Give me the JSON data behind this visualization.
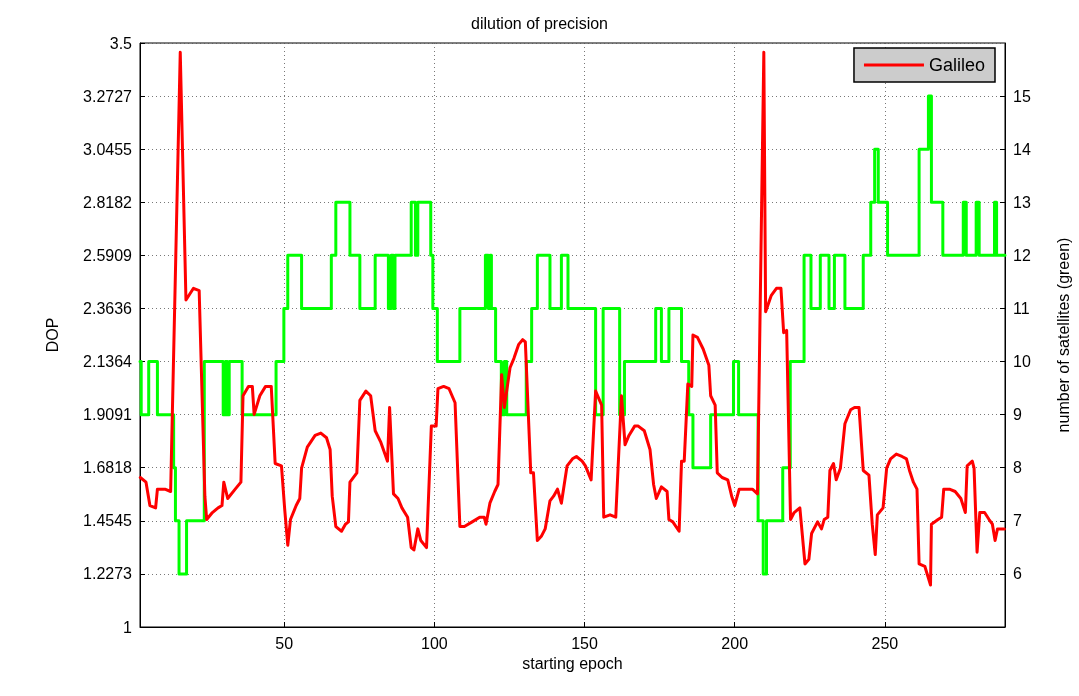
{
  "chart_data": {
    "type": "line",
    "title": "dilution of precision",
    "xlabel": "starting epoch",
    "ylabel": "DOP",
    "y2label": "number of satellites (green)",
    "xlim": [
      2,
      290
    ],
    "xticks": [
      50,
      100,
      150,
      200,
      250
    ],
    "ylim": [
      1,
      3.5
    ],
    "yticks": [
      1,
      1.2273,
      1.4545,
      1.6818,
      1.9091,
      2.1364,
      2.3636,
      2.5909,
      2.8182,
      3.0455,
      3.2727,
      3.5
    ],
    "y2lim": [
      5,
      16
    ],
    "y2ticks": [
      6,
      7,
      8,
      9,
      10,
      11,
      12,
      13,
      14,
      15
    ],
    "grid": true,
    "legend": "top right",
    "marker": "none",
    "line_style": "solid",
    "series": [
      {
        "type": "step",
        "axis": "y2",
        "color": "#00ff00",
        "x": [
          2,
          2.4,
          4.9,
          7.8,
          13.2,
          13.8,
          15,
          17.5,
          23.4,
          29.7,
          30.4,
          31.1,
          31.7,
          36,
          47.3,
          49.9,
          51.2,
          55.8,
          65.7,
          67.2,
          71.9,
          75.2,
          80.3,
          84.7,
          85.6,
          86.4,
          86.9,
          92.3,
          93.7,
          94.5,
          98.8,
          99.5,
          101,
          108.5,
          117,
          118,
          118.5,
          119,
          120.4,
          122.3,
          123.3,
          124.1,
          130.6,
          132.4,
          134.3,
          138.5,
          142.3,
          144.5,
          153.7,
          156.2,
          161.7,
          163.3,
          173.7,
          175.6,
          178.1,
          182.3,
          184.7,
          186.1,
          192,
          199.6,
          201.3,
          207.8,
          209.5,
          210.6,
          216,
          218.5,
          223.1,
          225.4,
          228.5,
          231.4,
          233.2,
          236.7,
          242.8,
          245.3,
          246.6,
          247.8,
          250.9,
          261.4,
          264.5,
          265.5,
          269.3,
          276.1,
          277.1,
          280.4,
          281.4,
          286.5,
          287.2,
          290
        ],
        "values": [
          10,
          9,
          10,
          9,
          8,
          7,
          6,
          7,
          10,
          9,
          10,
          9,
          10,
          9,
          10,
          11,
          12,
          11,
          12,
          13,
          12,
          11,
          12,
          11,
          12,
          11,
          12,
          13,
          12,
          13,
          12,
          11,
          10,
          11,
          12,
          11,
          12,
          11,
          10,
          9,
          10,
          9,
          10,
          11,
          12,
          11,
          12,
          11,
          9,
          11,
          9,
          10,
          11,
          10,
          11,
          10,
          9,
          8,
          9,
          10,
          9,
          7,
          6,
          7,
          8,
          10,
          12,
          11,
          12,
          11,
          12,
          11,
          12,
          13,
          14,
          13,
          12,
          14,
          15,
          13,
          12,
          13,
          12,
          13,
          12,
          13,
          12,
          12
        ]
      },
      {
        "name": "Galileo",
        "type": "line",
        "color": "#ff0000",
        "x": [
          2.1,
          4,
          5.3,
          7.2,
          7.8,
          10.3,
          12.2,
          15.4,
          17.3,
          19.8,
          21.7,
          23.6,
          24.2,
          26.1,
          28,
          29.3,
          29.9,
          31.2,
          33.7,
          35.6,
          36.3,
          38.1,
          39.4,
          40,
          41.9,
          43.8,
          45.7,
          47,
          49.1,
          50.2,
          51.2,
          52.1,
          54,
          55.2,
          55.8,
          57.7,
          60.3,
          62.2,
          64.1,
          65.3,
          66,
          67.2,
          69.1,
          70.4,
          71.4,
          71.9,
          74.2,
          75.2,
          77.2,
          78.8,
          80.3,
          82.2,
          84.4,
          85.1,
          86.4,
          87.9,
          89.2,
          91.1,
          92.3,
          93.2,
          94.5,
          95.5,
          97.4,
          99,
          100.6,
          101.2,
          103.1,
          104.9,
          106.9,
          108.5,
          110,
          112.6,
          115.1,
          116.6,
          117.2,
          118.5,
          120.1,
          121.2,
          122.4,
          123.3,
          125.2,
          126.5,
          128.1,
          129.4,
          130.3,
          132.1,
          133,
          134.3,
          135.7,
          136.9,
          138.5,
          139.7,
          141,
          142.3,
          144.2,
          146,
          147.3,
          149.2,
          150.3,
          152.2,
          153.7,
          155.7,
          156.4,
          158.5,
          160.4,
          162.3,
          163.5,
          164.8,
          166.7,
          167.9,
          169.9,
          171.8,
          173,
          173.9,
          175.6,
          177.5,
          178.1,
          179.4,
          181.5,
          182.3,
          183.2,
          184.4,
          185.7,
          186.1,
          187.6,
          189.5,
          191.4,
          192,
          193.5,
          194.2,
          195.8,
          197.7,
          199,
          200,
          201.5,
          203.4,
          204.6,
          205.9,
          207.6,
          209.7,
          210.3,
          212.2,
          213.9,
          215.4,
          216.3,
          217.3,
          218.6,
          219.8,
          221.7,
          223.4,
          224.7,
          225.6,
          227.6,
          228.9,
          229.8,
          231,
          231.7,
          232.9,
          233.8,
          235.2,
          236.7,
          238.6,
          239.9,
          241.4,
          242.8,
          244.7,
          245.8,
          246.8,
          247.5,
          249.4,
          250.6,
          251.9,
          253.8,
          255.7,
          257.2,
          258.2,
          259.5,
          260.7,
          261.4,
          263.3,
          265.2,
          265.5,
          267.7,
          268.9,
          269.6,
          271.5,
          273.4,
          275.3,
          276.8,
          277.4,
          279.1,
          279.7,
          280.7,
          281.6,
          283.2,
          284.7,
          285.8,
          286.7,
          287.5,
          289.8
        ],
        "values": [
          1.64,
          1.62,
          1.52,
          1.51,
          1.59,
          1.59,
          1.58,
          3.46,
          2.4,
          2.45,
          2.44,
          1.56,
          1.46,
          1.49,
          1.51,
          1.52,
          1.62,
          1.55,
          1.59,
          1.62,
          1.99,
          2.03,
          2.03,
          1.91,
          1.99,
          2.03,
          2.03,
          1.7,
          1.69,
          1.5,
          1.35,
          1.46,
          1.52,
          1.55,
          1.68,
          1.77,
          1.82,
          1.83,
          1.81,
          1.76,
          1.56,
          1.43,
          1.41,
          1.44,
          1.45,
          1.62,
          1.66,
          1.97,
          2.01,
          1.99,
          1.84,
          1.79,
          1.71,
          1.94,
          1.57,
          1.55,
          1.51,
          1.47,
          1.34,
          1.33,
          1.42,
          1.37,
          1.34,
          1.86,
          1.86,
          2.02,
          2.03,
          2.02,
          1.96,
          1.43,
          1.43,
          1.45,
          1.47,
          1.47,
          1.44,
          1.53,
          1.58,
          1.61,
          2.08,
          1.94,
          2.11,
          2.15,
          2.21,
          2.23,
          2.22,
          1.66,
          1.66,
          1.37,
          1.39,
          1.42,
          1.54,
          1.56,
          1.59,
          1.53,
          1.69,
          1.72,
          1.73,
          1.71,
          1.69,
          1.63,
          2.01,
          1.95,
          1.47,
          1.48,
          1.47,
          1.99,
          1.78,
          1.82,
          1.86,
          1.86,
          1.84,
          1.76,
          1.61,
          1.55,
          1.6,
          1.58,
          1.46,
          1.45,
          1.41,
          1.71,
          1.71,
          2.04,
          2.03,
          2.25,
          2.24,
          2.19,
          2.12,
          1.99,
          1.95,
          1.66,
          1.64,
          1.63,
          1.56,
          1.52,
          1.59,
          1.59,
          1.59,
          1.59,
          1.57,
          3.46,
          2.35,
          2.42,
          2.45,
          2.45,
          2.26,
          2.27,
          1.46,
          1.49,
          1.51,
          1.27,
          1.29,
          1.4,
          1.45,
          1.42,
          1.46,
          1.47,
          1.67,
          1.7,
          1.63,
          1.68,
          1.87,
          1.93,
          1.94,
          1.94,
          1.67,
          1.65,
          1.44,
          1.31,
          1.48,
          1.51,
          1.68,
          1.72,
          1.74,
          1.73,
          1.72,
          1.67,
          1.62,
          1.59,
          1.27,
          1.26,
          1.18,
          1.44,
          1.46,
          1.47,
          1.59,
          1.59,
          1.58,
          1.55,
          1.49,
          1.69,
          1.71,
          1.68,
          1.32,
          1.49,
          1.49,
          1.46,
          1.44,
          1.37,
          1.42,
          1.42
        ]
      }
    ]
  }
}
